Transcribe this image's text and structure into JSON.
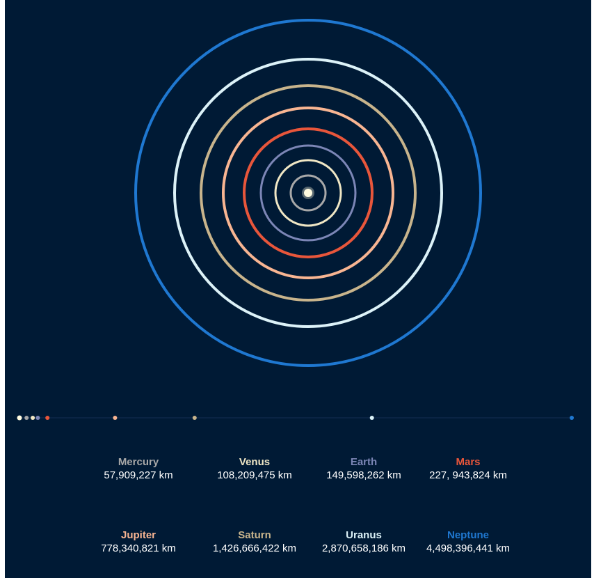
{
  "colors": {
    "background": "#001a35",
    "sun": "#fffbe0",
    "scale_line": "#0a2444"
  },
  "planets": [
    {
      "name": "Mercury",
      "distance_label": "57,909,227 km",
      "distance_km": 57909227,
      "color": "#a8a8a8"
    },
    {
      "name": "Venus",
      "distance_label": "108,209,475 km",
      "distance_km": 108209475,
      "color": "#f0e7c5"
    },
    {
      "name": "Earth",
      "distance_label": "149,598,262 km",
      "distance_km": 149598262,
      "color": "#7c86b6"
    },
    {
      "name": "Mars",
      "distance_label": "227, 943,824 km",
      "distance_km": 227943824,
      "color": "#e8563b"
    },
    {
      "name": "Jupiter",
      "distance_label": "778,340,821 km",
      "distance_km": 778340821,
      "color": "#f8b592"
    },
    {
      "name": "Saturn",
      "distance_label": "1,426,666,422 km",
      "distance_km": 1426666422,
      "color": "#c8b48c"
    },
    {
      "name": "Uranus",
      "distance_label": "2,870,658,186 km",
      "distance_km": 2870658186,
      "color": "#dcf2f8"
    },
    {
      "name": "Neptune",
      "distance_label": "4,498,396,441 km",
      "distance_km": 4498396441,
      "color": "#1f78d1"
    }
  ]
}
